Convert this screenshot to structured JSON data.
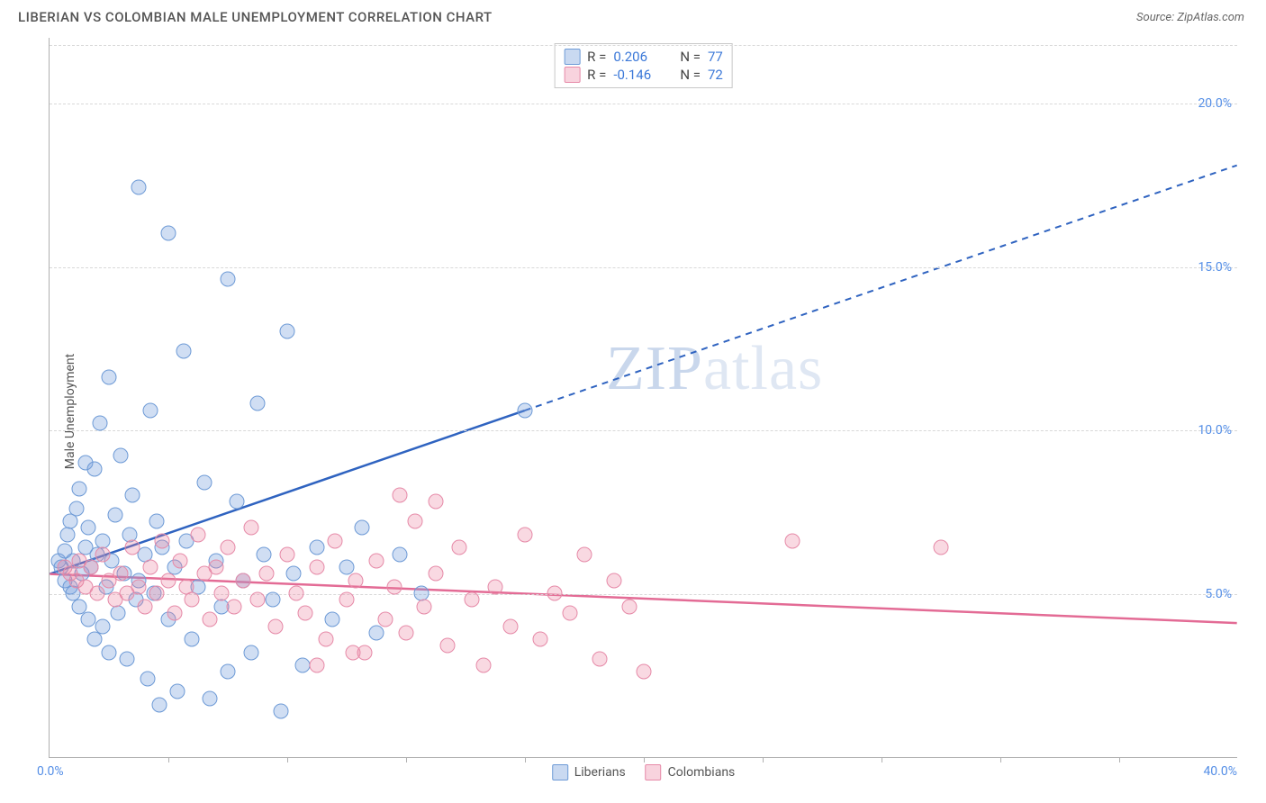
{
  "title": "LIBERIAN VS COLOMBIAN MALE UNEMPLOYMENT CORRELATION CHART",
  "source": "Source: ZipAtlas.com",
  "ylabel": "Male Unemployment",
  "watermark_a": "ZIP",
  "watermark_b": "atlas",
  "chart": {
    "type": "scatter",
    "x_min": 0,
    "x_max": 40,
    "y_min": 0,
    "y_max": 22,
    "x_origin_label": "0.0%",
    "x_max_label": "40.0%",
    "y_ticks": [
      {
        "v": 5,
        "label": "5.0%"
      },
      {
        "v": 10,
        "label": "10.0%"
      },
      {
        "v": 15,
        "label": "15.0%"
      },
      {
        "v": 20,
        "label": "20.0%"
      }
    ],
    "x_tick_positions": [
      4,
      8,
      12,
      16,
      20,
      24,
      28,
      32,
      36
    ],
    "grid_color": "#d8d8d8",
    "background": "#ffffff",
    "series": [
      {
        "name": "Liberians",
        "color_fill": "rgba(120,160,220,0.35)",
        "color_stroke": "#6d9ad6",
        "r": 0.206,
        "n": 77,
        "trend": {
          "x1": 0,
          "y1": 5.6,
          "x2": 16,
          "y2": 10.6,
          "dash_x2": 40,
          "dash_y2": 18.1,
          "color": "#2f63c0"
        },
        "points": [
          [
            0.3,
            6.0
          ],
          [
            0.4,
            5.8
          ],
          [
            0.5,
            6.3
          ],
          [
            0.5,
            5.4
          ],
          [
            0.6,
            6.8
          ],
          [
            0.7,
            5.2
          ],
          [
            0.7,
            7.2
          ],
          [
            0.8,
            6.0
          ],
          [
            0.8,
            5.0
          ],
          [
            0.9,
            7.6
          ],
          [
            1.0,
            4.6
          ],
          [
            1.0,
            8.2
          ],
          [
            1.1,
            5.6
          ],
          [
            1.2,
            6.4
          ],
          [
            1.2,
            9.0
          ],
          [
            1.3,
            4.2
          ],
          [
            1.3,
            7.0
          ],
          [
            1.4,
            5.8
          ],
          [
            1.5,
            3.6
          ],
          [
            1.5,
            8.8
          ],
          [
            1.6,
            6.2
          ],
          [
            1.7,
            10.2
          ],
          [
            1.8,
            4.0
          ],
          [
            1.8,
            6.6
          ],
          [
            1.9,
            5.2
          ],
          [
            2.0,
            11.6
          ],
          [
            2.0,
            3.2
          ],
          [
            2.1,
            6.0
          ],
          [
            2.2,
            7.4
          ],
          [
            2.3,
            4.4
          ],
          [
            2.4,
            9.2
          ],
          [
            2.5,
            5.6
          ],
          [
            2.6,
            3.0
          ],
          [
            2.7,
            6.8
          ],
          [
            2.8,
            8.0
          ],
          [
            2.9,
            4.8
          ],
          [
            3.0,
            17.4
          ],
          [
            3.0,
            5.4
          ],
          [
            3.2,
            6.2
          ],
          [
            3.3,
            2.4
          ],
          [
            3.4,
            10.6
          ],
          [
            3.5,
            5.0
          ],
          [
            3.6,
            7.2
          ],
          [
            3.7,
            1.6
          ],
          [
            3.8,
            6.4
          ],
          [
            4.0,
            16.0
          ],
          [
            4.0,
            4.2
          ],
          [
            4.2,
            5.8
          ],
          [
            4.3,
            2.0
          ],
          [
            4.5,
            12.4
          ],
          [
            4.6,
            6.6
          ],
          [
            4.8,
            3.6
          ],
          [
            5.0,
            5.2
          ],
          [
            5.2,
            8.4
          ],
          [
            5.4,
            1.8
          ],
          [
            5.6,
            6.0
          ],
          [
            5.8,
            4.6
          ],
          [
            6.0,
            14.6
          ],
          [
            6.0,
            2.6
          ],
          [
            6.3,
            7.8
          ],
          [
            6.5,
            5.4
          ],
          [
            6.8,
            3.2
          ],
          [
            7.0,
            10.8
          ],
          [
            7.2,
            6.2
          ],
          [
            7.5,
            4.8
          ],
          [
            7.8,
            1.4
          ],
          [
            8.0,
            13.0
          ],
          [
            8.2,
            5.6
          ],
          [
            8.5,
            2.8
          ],
          [
            9.0,
            6.4
          ],
          [
            9.5,
            4.2
          ],
          [
            10.0,
            5.8
          ],
          [
            10.5,
            7.0
          ],
          [
            11.0,
            3.8
          ],
          [
            11.8,
            6.2
          ],
          [
            12.5,
            5.0
          ],
          [
            16.0,
            10.6
          ]
        ]
      },
      {
        "name": "Colombians",
        "color_fill": "rgba(236,130,160,0.30)",
        "color_stroke": "#e68aa8",
        "r": -0.146,
        "n": 72,
        "trend": {
          "x1": 0,
          "y1": 5.6,
          "x2": 40,
          "y2": 4.1,
          "color": "#e36b95"
        },
        "points": [
          [
            0.5,
            5.8
          ],
          [
            0.7,
            5.6
          ],
          [
            0.9,
            5.4
          ],
          [
            1.0,
            6.0
          ],
          [
            1.2,
            5.2
          ],
          [
            1.4,
            5.8
          ],
          [
            1.6,
            5.0
          ],
          [
            1.8,
            6.2
          ],
          [
            2.0,
            5.4
          ],
          [
            2.2,
            4.8
          ],
          [
            2.4,
            5.6
          ],
          [
            2.6,
            5.0
          ],
          [
            2.8,
            6.4
          ],
          [
            3.0,
            5.2
          ],
          [
            3.2,
            4.6
          ],
          [
            3.4,
            5.8
          ],
          [
            3.6,
            5.0
          ],
          [
            3.8,
            6.6
          ],
          [
            4.0,
            5.4
          ],
          [
            4.2,
            4.4
          ],
          [
            4.4,
            6.0
          ],
          [
            4.6,
            5.2
          ],
          [
            4.8,
            4.8
          ],
          [
            5.0,
            6.8
          ],
          [
            5.2,
            5.6
          ],
          [
            5.4,
            4.2
          ],
          [
            5.6,
            5.8
          ],
          [
            5.8,
            5.0
          ],
          [
            6.0,
            6.4
          ],
          [
            6.2,
            4.6
          ],
          [
            6.5,
            5.4
          ],
          [
            6.8,
            7.0
          ],
          [
            7.0,
            4.8
          ],
          [
            7.3,
            5.6
          ],
          [
            7.6,
            4.0
          ],
          [
            8.0,
            6.2
          ],
          [
            8.3,
            5.0
          ],
          [
            8.6,
            4.4
          ],
          [
            9.0,
            5.8
          ],
          [
            9.3,
            3.6
          ],
          [
            9.6,
            6.6
          ],
          [
            10.0,
            4.8
          ],
          [
            10.3,
            5.4
          ],
          [
            10.6,
            3.2
          ],
          [
            11.0,
            6.0
          ],
          [
            11.3,
            4.2
          ],
          [
            11.6,
            5.2
          ],
          [
            12.0,
            3.8
          ],
          [
            12.3,
            7.2
          ],
          [
            12.6,
            4.6
          ],
          [
            13.0,
            5.6
          ],
          [
            13.4,
            3.4
          ],
          [
            13.8,
            6.4
          ],
          [
            14.2,
            4.8
          ],
          [
            14.6,
            2.8
          ],
          [
            15.0,
            5.2
          ],
          [
            15.5,
            4.0
          ],
          [
            16.0,
            6.8
          ],
          [
            16.5,
            3.6
          ],
          [
            17.0,
            5.0
          ],
          [
            17.5,
            4.4
          ],
          [
            18.0,
            6.2
          ],
          [
            18.5,
            3.0
          ],
          [
            19.0,
            5.4
          ],
          [
            19.5,
            4.6
          ],
          [
            20.0,
            2.6
          ],
          [
            25.0,
            6.6
          ],
          [
            30.0,
            6.4
          ],
          [
            13.0,
            7.8
          ],
          [
            11.8,
            8.0
          ],
          [
            10.2,
            3.2
          ],
          [
            9.0,
            2.8
          ]
        ]
      }
    ]
  },
  "legend_top": {
    "rows": [
      {
        "sw": "blue",
        "r_label": "R =",
        "r_val": "0.206",
        "n_label": "N =",
        "n_val": "77"
      },
      {
        "sw": "pink",
        "r_label": "R =",
        "r_val": "-0.146",
        "n_label": "N =",
        "n_val": "72"
      }
    ]
  },
  "legend_bottom": [
    {
      "sw": "blue",
      "label": "Liberians"
    },
    {
      "sw": "pink",
      "label": "Colombians"
    }
  ]
}
